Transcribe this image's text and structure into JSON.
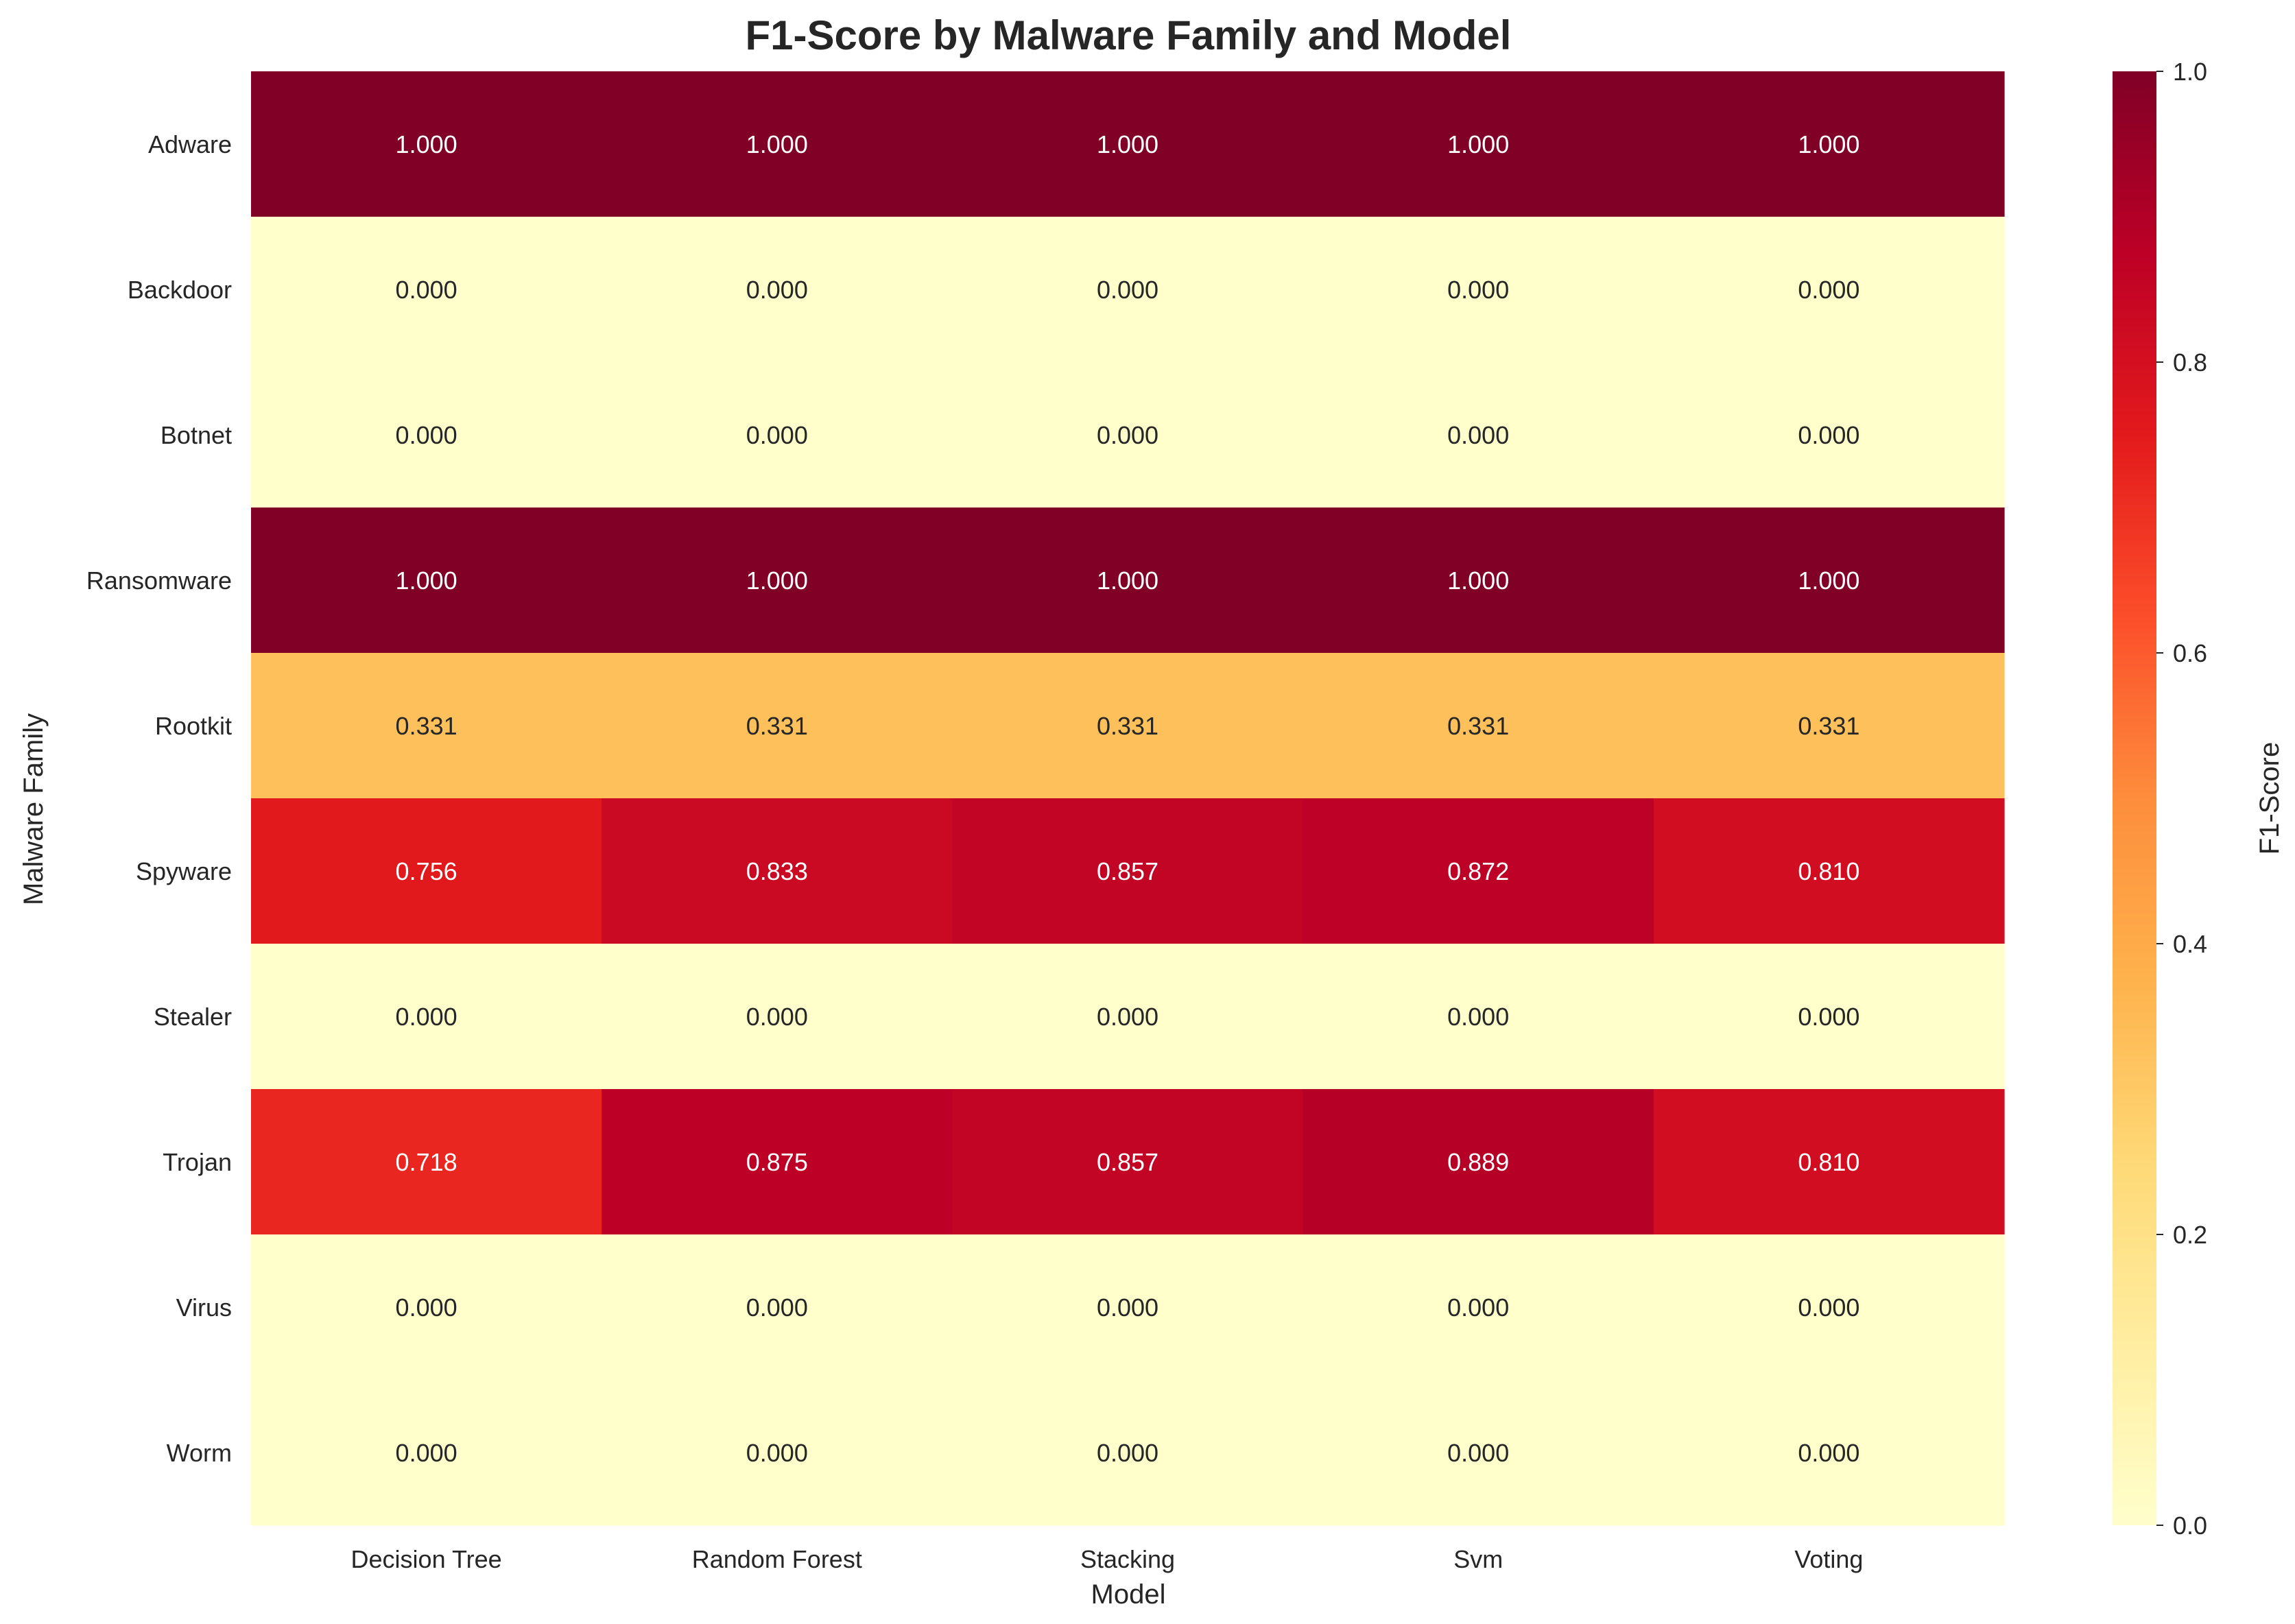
{
  "chart_data": {
    "type": "heatmap",
    "title": "F1-Score by Malware Family and Model",
    "xlabel": "Model",
    "ylabel": "Malware Family",
    "x_categories": [
      "Decision Tree",
      "Random Forest",
      "Stacking",
      "Svm",
      "Voting"
    ],
    "y_categories": [
      "Adware",
      "Backdoor",
      "Botnet",
      "Ransomware",
      "Rootkit",
      "Spyware",
      "Stealer",
      "Trojan",
      "Virus",
      "Worm"
    ],
    "values": [
      [
        1.0,
        1.0,
        1.0,
        1.0,
        1.0
      ],
      [
        0.0,
        0.0,
        0.0,
        0.0,
        0.0
      ],
      [
        0.0,
        0.0,
        0.0,
        0.0,
        0.0
      ],
      [
        1.0,
        1.0,
        1.0,
        1.0,
        1.0
      ],
      [
        0.331,
        0.331,
        0.331,
        0.331,
        0.331
      ],
      [
        0.756,
        0.833,
        0.857,
        0.872,
        0.81
      ],
      [
        0.0,
        0.0,
        0.0,
        0.0,
        0.0
      ],
      [
        0.718,
        0.875,
        0.857,
        0.889,
        0.81
      ],
      [
        0.0,
        0.0,
        0.0,
        0.0,
        0.0
      ],
      [
        0.0,
        0.0,
        0.0,
        0.0,
        0.0
      ]
    ],
    "value_format": "0.000",
    "colormap": "YlOrRd",
    "colormap_stops": [
      "#ffffcc",
      "#ffeda0",
      "#fed976",
      "#feb24c",
      "#fd8d3c",
      "#fc4e2a",
      "#e31a1c",
      "#bd0026",
      "#800026"
    ],
    "vmin": 0.0,
    "vmax": 1.0,
    "colorbar_label": "F1-Score",
    "colorbar_ticks": [
      "0.0",
      "0.2",
      "0.4",
      "0.6",
      "0.8",
      "1.0"
    ],
    "grid": false
  }
}
